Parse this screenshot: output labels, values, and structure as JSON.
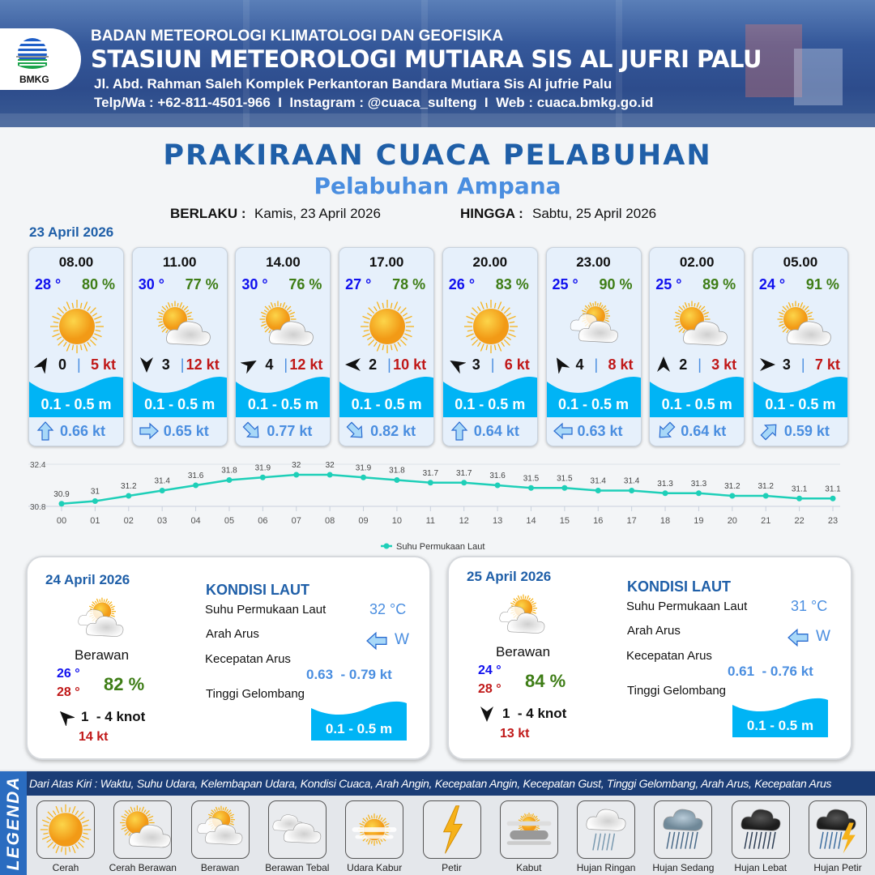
{
  "header": {
    "agency": "BADAN METEOROLOGI KLIMATOLOGI DAN GEOFISIKA",
    "station": "STASIUN METEOROLOGI MUTIARA SIS AL JUFRI PALU",
    "address": "Jl. Abd. Rahman Saleh Komplek Perkantoran Bandara Mutiara Sis Al jufrie Palu",
    "contact": "Telp/Wa : +62-811-4501-966  I  Instagram : @cuaca_sulteng  I  Web : cuaca.bmkg.go.id",
    "logo_text": "BMKG"
  },
  "title": "PRAKIRAAN CUACA PELABUHAN",
  "subtitle": "Pelabuhan Ampana",
  "validity": {
    "from_label": "BERLAKU :",
    "from": "Kamis, 23 April 2026",
    "to_label": "HINGGA :",
    "to": "Sabtu, 25 April 2026"
  },
  "day1_date": "23 April 2026",
  "colors": {
    "temp": "#1010ee",
    "humidity": "#3e7d16",
    "gust": "#c01818",
    "wave": "#00b4f5",
    "current": "#4a8ee0",
    "title": "#1f5fa8"
  },
  "cards": [
    {
      "time": "08.00",
      "temp": "28 °",
      "hum": "80 %",
      "icon": "cerah",
      "wind_dir_deg": 30,
      "wind": "0",
      "gust": "5 kt",
      "wave": "0.1 - 0.5 m",
      "cur_dir_deg": 0,
      "cur": "0.66 kt"
    },
    {
      "time": "11.00",
      "temp": "30 °",
      "hum": "77 %",
      "icon": "cerah-berawan",
      "wind_dir_deg": 180,
      "wind": "3",
      "gust": "12 kt",
      "wave": "0.1 - 0.5 m",
      "cur_dir_deg": 90,
      "cur": "0.65 kt"
    },
    {
      "time": "14.00",
      "temp": "30 °",
      "hum": "76 %",
      "icon": "cerah-berawan",
      "wind_dir_deg": 60,
      "wind": "4",
      "gust": "12 kt",
      "wave": "0.1 - 0.5 m",
      "cur_dir_deg": 135,
      "cur": "0.77 kt"
    },
    {
      "time": "17.00",
      "temp": "27 °",
      "hum": "78 %",
      "icon": "cerah",
      "wind_dir_deg": 270,
      "wind": "2",
      "gust": "10 kt",
      "wave": "0.1 - 0.5 m",
      "cur_dir_deg": 135,
      "cur": "0.82 kt"
    },
    {
      "time": "20.00",
      "temp": "26 °",
      "hum": "83 %",
      "icon": "cerah",
      "wind_dir_deg": 300,
      "wind": "3",
      "gust": "6 kt",
      "wave": "0.1 - 0.5 m",
      "cur_dir_deg": 0,
      "cur": "0.64 kt"
    },
    {
      "time": "23.00",
      "temp": "25 °",
      "hum": "90 %",
      "icon": "berawan",
      "wind_dir_deg": 330,
      "wind": "4",
      "gust": "8 kt",
      "wave": "0.1 - 0.5 m",
      "cur_dir_deg": 270,
      "cur": "0.63 kt"
    },
    {
      "time": "02.00",
      "temp": "25 °",
      "hum": "89 %",
      "icon": "cerah-berawan",
      "wind_dir_deg": 0,
      "wind": "2",
      "gust": "3 kt",
      "wave": "0.1 - 0.5 m",
      "cur_dir_deg": 225,
      "cur": "0.64 kt"
    },
    {
      "time": "05.00",
      "temp": "24 °",
      "hum": "91 %",
      "icon": "cerah-berawan",
      "wind_dir_deg": 90,
      "wind": "3",
      "gust": "7 kt",
      "wave": "0.1 - 0.5 m",
      "cur_dir_deg": 45,
      "cur": "0.59 kt"
    }
  ],
  "chart_data": {
    "type": "line",
    "categories": [
      "00",
      "01",
      "02",
      "03",
      "04",
      "05",
      "06",
      "07",
      "08",
      "09",
      "10",
      "11",
      "12",
      "13",
      "14",
      "15",
      "16",
      "17",
      "18",
      "19",
      "20",
      "21",
      "22",
      "23"
    ],
    "series": [
      {
        "name": "Suhu Permukaan Laut",
        "values": [
          30.9,
          31.0,
          31.2,
          31.4,
          31.6,
          31.8,
          31.9,
          32.0,
          32.0,
          31.9,
          31.8,
          31.7,
          31.7,
          31.6,
          31.5,
          31.5,
          31.4,
          31.4,
          31.3,
          31.3,
          31.2,
          31.2,
          31.1,
          31.1
        ],
        "color": "#1ecfb8"
      }
    ],
    "yticks": [
      "30.8",
      "32.4"
    ],
    "ylim": [
      30.8,
      32.4
    ],
    "grid": true,
    "legend": "bottom-center",
    "data_labels": true
  },
  "days": [
    {
      "date": "24 April 2026",
      "icon": "berawan",
      "condition": "Berawan",
      "tmin": "26 °",
      "tmax": "28 °",
      "hum": "82 %",
      "wind_dir_deg": 315,
      "wind": "1  - 4 knot",
      "gust": "14 kt",
      "sea_title": "KONDISI LAUT",
      "sst_label": "Suhu Permukaan Laut",
      "sst": "32 °C",
      "dir_label": "Arah Arus",
      "cur_dir": "W",
      "cur_dir_deg": 270,
      "spd_label": "Kecepatan Arus",
      "spd": "0.63  - 0.79 kt",
      "wave_label": "Tinggi Gelombang",
      "wave": "0.1 - 0.5 m"
    },
    {
      "date": "25 April 2026",
      "icon": "berawan",
      "condition": "Berawan",
      "tmin": "24 °",
      "tmax": "28 °",
      "hum": "84 %",
      "wind_dir_deg": 180,
      "wind": "1  - 4 knot",
      "gust": "13 kt",
      "sea_title": "KONDISI LAUT",
      "sst_label": "Suhu Permukaan Laut",
      "sst": "31 °C",
      "dir_label": "Arah Arus",
      "cur_dir": "W",
      "cur_dir_deg": 270,
      "spd_label": "Kecepatan Arus",
      "spd": "0.61  - 0.76 kt",
      "wave_label": "Tinggi Gelombang",
      "wave": "0.1 - 0.5 m"
    }
  ],
  "legend": {
    "side_label": "LEGENDA",
    "description": "Dari Atas Kiri : Waktu, Suhu Udara, Kelembapan Udara, Kondisi Cuaca, Arah Angin, Kecepatan Angin, Kecepatan Gust, Tinggi Gelombang, Arah Arus, Kecepatan Arus",
    "items": [
      {
        "label": "Cerah",
        "icon": "cerah"
      },
      {
        "label": "Cerah Berawan",
        "icon": "cerah-berawan"
      },
      {
        "label": "Berawan",
        "icon": "berawan"
      },
      {
        "label": "Berawan Tebal",
        "icon": "berawan-tebal"
      },
      {
        "label": "Udara Kabur",
        "icon": "udara-kabur"
      },
      {
        "label": "Petir",
        "icon": "petir"
      },
      {
        "label": "Kabut",
        "icon": "kabut"
      },
      {
        "label": "Hujan Ringan",
        "icon": "hujan-ringan"
      },
      {
        "label": "Hujan Sedang",
        "icon": "hujan-sedang"
      },
      {
        "label": "Hujan Lebat",
        "icon": "hujan-lebat"
      },
      {
        "label": "Hujan Petir",
        "icon": "hujan-petir"
      }
    ]
  }
}
